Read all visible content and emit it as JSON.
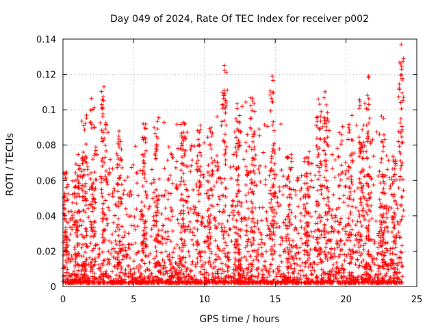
{
  "chart_data": {
    "type": "scatter",
    "title": "Day 049 of 2024, Rate Of TEC Index for receiver p002",
    "xlabel": "GPS time / hours",
    "ylabel": "ROTI / TECUs",
    "xlim": [
      0,
      25
    ],
    "ylim": [
      0,
      0.14
    ],
    "xticks": [
      0,
      5,
      10,
      15,
      20,
      25
    ],
    "yticks": [
      0,
      0.02,
      0.04,
      0.06,
      0.08,
      0.1,
      0.12,
      0.14
    ],
    "xtick_labels": [
      "0",
      "5",
      "10",
      "15",
      "20",
      "25"
    ],
    "ytick_labels": [
      "0",
      "0.02",
      "0.04",
      "0.06",
      "0.08",
      "0.1",
      "0.12",
      "0.14"
    ],
    "grid": true,
    "marker": "+",
    "marker_color": "#ff0000",
    "series": [
      {
        "name": "ROTI",
        "x_range": [
          0,
          24
        ],
        "note": "dense cloud of points across 0-24 h; representative envelope and notable values below",
        "envelope": [
          {
            "x": 0.2,
            "y": 0.065
          },
          {
            "x": 1.0,
            "y": 0.07
          },
          {
            "x": 1.5,
            "y": 0.097
          },
          {
            "x": 2.1,
            "y": 0.107
          },
          {
            "x": 2.9,
            "y": 0.113
          },
          {
            "x": 4.0,
            "y": 0.089
          },
          {
            "x": 5.7,
            "y": 0.094
          },
          {
            "x": 6.6,
            "y": 0.096
          },
          {
            "x": 8.5,
            "y": 0.093
          },
          {
            "x": 9.6,
            "y": 0.092
          },
          {
            "x": 10.4,
            "y": 0.094
          },
          {
            "x": 11.4,
            "y": 0.125
          },
          {
            "x": 12.4,
            "y": 0.105
          },
          {
            "x": 13.4,
            "y": 0.108
          },
          {
            "x": 14.8,
            "y": 0.119
          },
          {
            "x": 16.0,
            "y": 0.079
          },
          {
            "x": 17.2,
            "y": 0.08
          },
          {
            "x": 18.1,
            "y": 0.11
          },
          {
            "x": 18.6,
            "y": 0.112
          },
          {
            "x": 20.3,
            "y": 0.094
          },
          {
            "x": 21.1,
            "y": 0.107
          },
          {
            "x": 21.6,
            "y": 0.119
          },
          {
            "x": 22.6,
            "y": 0.099
          },
          {
            "x": 23.4,
            "y": 0.074
          },
          {
            "x": 23.9,
            "y": 0.137
          }
        ],
        "peaks": [
          {
            "x": 2.9,
            "y": 0.113
          },
          {
            "x": 11.4,
            "y": 0.125
          },
          {
            "x": 14.8,
            "y": 0.119
          },
          {
            "x": 21.6,
            "y": 0.119
          },
          {
            "x": 23.9,
            "y": 0.137
          }
        ]
      }
    ]
  }
}
